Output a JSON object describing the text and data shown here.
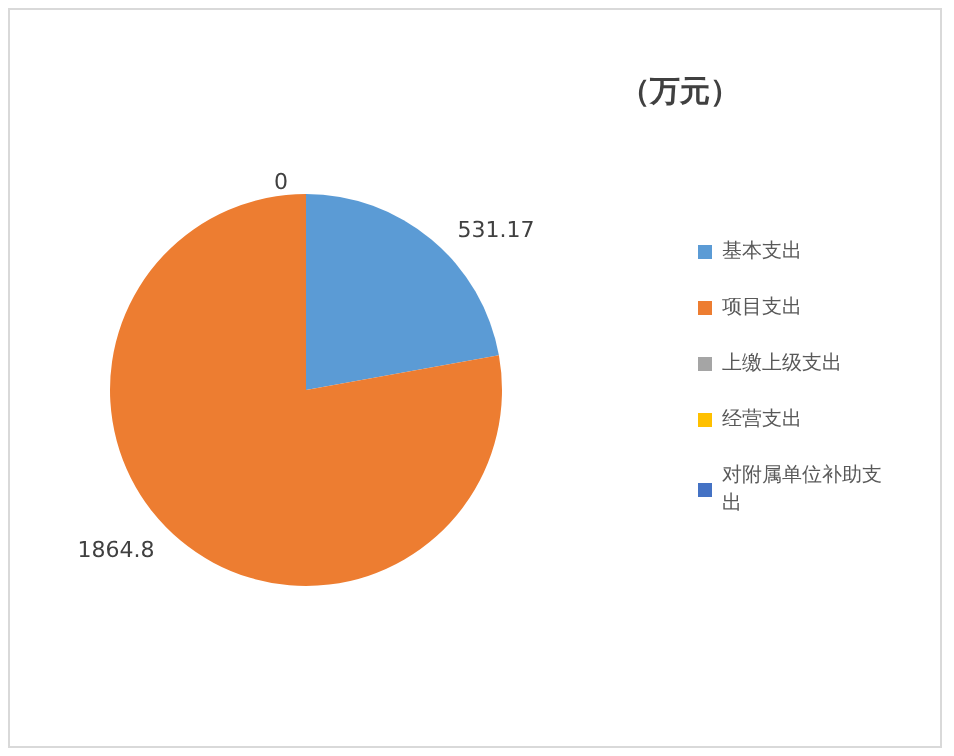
{
  "chart_data": {
    "type": "pie",
    "title": "（万元）",
    "categories": [
      "基本支出",
      "项目支出",
      "上缴上级支出",
      "经营支出",
      "对附属单位补助支出"
    ],
    "values": [
      531.17,
      1864.8,
      0,
      0,
      0
    ],
    "colors": [
      "#5b9bd5",
      "#ed7d31",
      "#a5a5a5",
      "#ffc000",
      "#4472c4"
    ],
    "value_labels": [
      "531.17",
      "1864.8",
      "0",
      null,
      null
    ],
    "legend": "right"
  }
}
